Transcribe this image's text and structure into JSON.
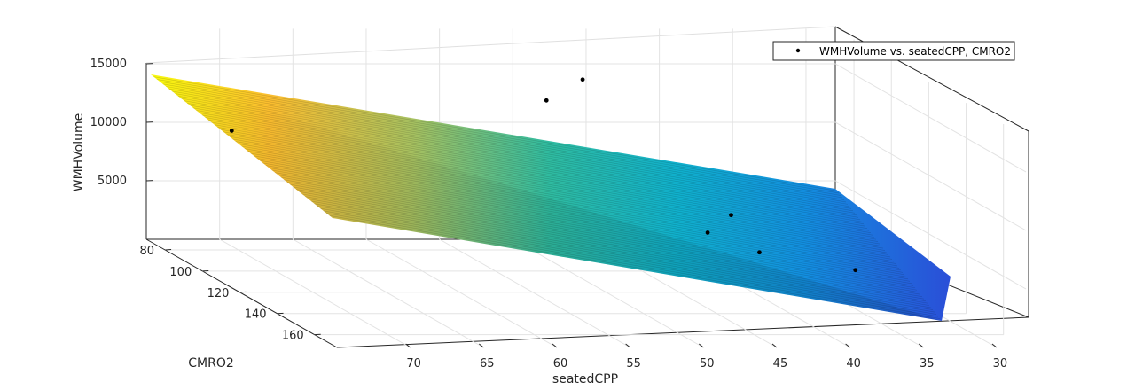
{
  "chart_data": {
    "type": "surface3d+scatter3d",
    "xlabel": "seatedCPP",
    "ylabel": "CMRO2",
    "zlabel": "WMHVolume",
    "xticks": [
      30,
      35,
      40,
      45,
      50,
      55,
      60,
      65,
      70
    ],
    "yticks": [
      80,
      100,
      120,
      140,
      160
    ],
    "zticks": [
      5000,
      10000,
      15000
    ],
    "xlim": [
      28,
      75
    ],
    "ylim": [
      70,
      172
    ],
    "zlim": [
      0,
      16000
    ],
    "grid": true,
    "legend": {
      "position": "top-right",
      "entries": [
        "WMHVolume vs. seatedCPP, CMRO2"
      ]
    },
    "surface": {
      "description": "fitted plane",
      "corners": [
        {
          "x": 75,
          "y": 75,
          "z": 15000
        },
        {
          "x": 75,
          "y": 168,
          "z": 2000
        },
        {
          "x": 30,
          "y": 75,
          "z": 3000
        },
        {
          "x": 30,
          "y": 168,
          "z": 0
        }
      ],
      "colormap": [
        "#3e26a8",
        "#2f6ef0",
        "#0ca4d6",
        "#2ebc9b",
        "#8ec36c",
        "#e8b636",
        "#f8fa0d"
      ]
    },
    "points": [
      {
        "x": 73,
        "y": 100,
        "z": 12000
      },
      {
        "x": 50,
        "y": 88,
        "z": 13500
      },
      {
        "x": 46,
        "y": 76,
        "z": 14200
      },
      {
        "x": 36,
        "y": 77,
        "z": 2700
      },
      {
        "x": 39,
        "y": 88,
        "z": 2200
      },
      {
        "x": 33,
        "y": 120,
        "z": 1900
      },
      {
        "x": 37,
        "y": 100,
        "z": 1600
      }
    ]
  }
}
